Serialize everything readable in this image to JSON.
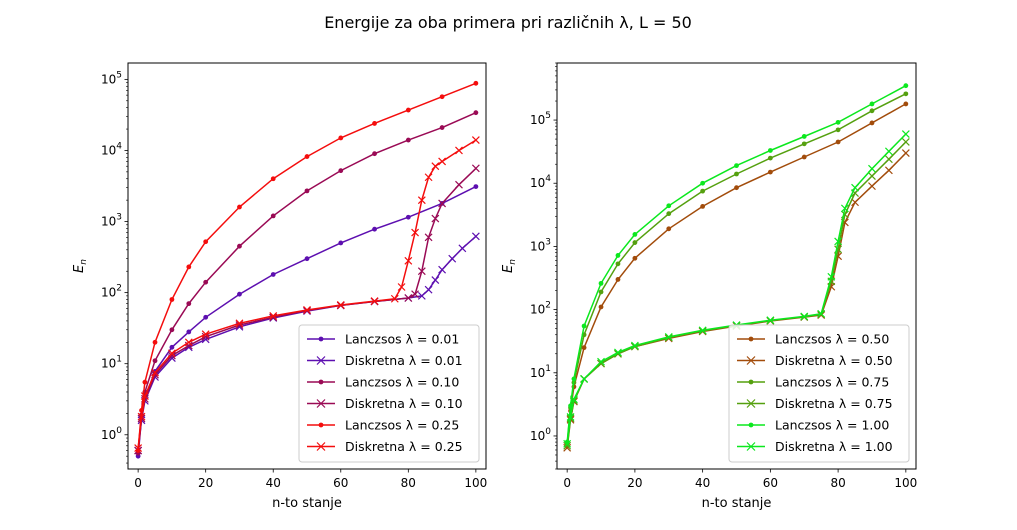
{
  "figure": {
    "title": "Energije za oba primera pri različnih λ, L = 50"
  },
  "chart_data": [
    {
      "type": "line",
      "yscale": "log",
      "xlabel": "n-to stanje",
      "ylabel": "E_n",
      "xlim": [
        -3,
        103
      ],
      "ylim": [
        0.33,
        170000
      ],
      "xticks": [
        0,
        20,
        40,
        60,
        80,
        100
      ],
      "xtick_labels": [
        "0",
        "20",
        "40",
        "60",
        "80",
        "100"
      ],
      "ytick_exponents": [
        0,
        1,
        2,
        3,
        4,
        5
      ],
      "legend_position": "lower-right",
      "series": [
        {
          "name": "Lanczsos λ = 0.01",
          "legend": "Lanczsos",
          "lambda": "λ = 0.01",
          "marker": "dot",
          "color": "#5d0fb0",
          "points": [
            [
              0,
              0.5
            ],
            [
              1,
              1.7
            ],
            [
              2,
              3.3
            ],
            [
              5,
              7.8
            ],
            [
              10,
              17
            ],
            [
              15,
              28
            ],
            [
              20,
              45
            ],
            [
              30,
              95
            ],
            [
              40,
              180
            ],
            [
              50,
              300
            ],
            [
              60,
              500
            ],
            [
              70,
              780
            ],
            [
              80,
              1150
            ],
            [
              90,
              1800
            ],
            [
              100,
              3100
            ]
          ]
        },
        {
          "name": "Diskretna λ = 0.01",
          "legend": "Diskretna",
          "lambda": "λ = 0.01",
          "marker": "x",
          "color": "#5d0fb0",
          "points": [
            [
              0,
              0.6
            ],
            [
              1,
              1.6
            ],
            [
              2,
              3
            ],
            [
              5,
              6.5
            ],
            [
              10,
              12
            ],
            [
              15,
              17
            ],
            [
              20,
              22
            ],
            [
              30,
              33
            ],
            [
              40,
              44
            ],
            [
              50,
              55
            ],
            [
              60,
              66
            ],
            [
              70,
              75
            ],
            [
              80,
              84
            ],
            [
              84,
              90
            ],
            [
              86,
              110
            ],
            [
              88,
              150
            ],
            [
              90,
              210
            ],
            [
              93,
              300
            ],
            [
              96,
              420
            ],
            [
              100,
              620
            ]
          ]
        },
        {
          "name": "Lanczsos λ = 0.10",
          "legend": "Lanczsos",
          "lambda": "λ = 0.10",
          "marker": "dot",
          "color": "#9a0a55",
          "points": [
            [
              0,
              0.55
            ],
            [
              1,
              1.9
            ],
            [
              2,
              4
            ],
            [
              5,
              11
            ],
            [
              10,
              30
            ],
            [
              15,
              70
            ],
            [
              20,
              140
            ],
            [
              30,
              450
            ],
            [
              40,
              1200
            ],
            [
              50,
              2700
            ],
            [
              60,
              5200
            ],
            [
              70,
              9000
            ],
            [
              80,
              14000
            ],
            [
              90,
              21000
            ],
            [
              100,
              34000
            ]
          ]
        },
        {
          "name": "Diskretna λ = 0.10",
          "legend": "Diskretna",
          "lambda": "λ = 0.10",
          "marker": "x",
          "color": "#9a0a55",
          "points": [
            [
              0,
              0.6
            ],
            [
              1,
              1.7
            ],
            [
              2,
              3.2
            ],
            [
              5,
              7
            ],
            [
              10,
              13
            ],
            [
              15,
              18
            ],
            [
              20,
              24
            ],
            [
              30,
              35
            ],
            [
              40,
              45
            ],
            [
              50,
              56
            ],
            [
              60,
              66
            ],
            [
              70,
              75
            ],
            [
              80,
              84
            ],
            [
              82,
              95
            ],
            [
              84,
              200
            ],
            [
              86,
              600
            ],
            [
              88,
              1100
            ],
            [
              90,
              1800
            ],
            [
              95,
              3300
            ],
            [
              100,
              5600
            ]
          ]
        },
        {
          "name": "Lanczsos λ = 0.25",
          "legend": "Lanczsos",
          "lambda": "λ = 0.25",
          "marker": "dot",
          "color": "#f40d0d",
          "points": [
            [
              0,
              0.6
            ],
            [
              1,
              2.2
            ],
            [
              2,
              5.5
            ],
            [
              5,
              20
            ],
            [
              10,
              80
            ],
            [
              15,
              230
            ],
            [
              20,
              520
            ],
            [
              30,
              1600
            ],
            [
              40,
              4000
            ],
            [
              50,
              8200
            ],
            [
              60,
              15000
            ],
            [
              70,
              24000
            ],
            [
              80,
              37000
            ],
            [
              90,
              57000
            ],
            [
              100,
              88000
            ]
          ]
        },
        {
          "name": "Diskretna λ = 0.25",
          "legend": "Diskretna",
          "lambda": "λ = 0.25",
          "marker": "x",
          "color": "#f40d0d",
          "points": [
            [
              0,
              0.65
            ],
            [
              1,
              1.8
            ],
            [
              2,
              3.5
            ],
            [
              5,
              7.5
            ],
            [
              10,
              14
            ],
            [
              15,
              20
            ],
            [
              20,
              26
            ],
            [
              30,
              37
            ],
            [
              40,
              47
            ],
            [
              50,
              57
            ],
            [
              60,
              67
            ],
            [
              70,
              76
            ],
            [
              76,
              82
            ],
            [
              78,
              120
            ],
            [
              80,
              280
            ],
            [
              82,
              700
            ],
            [
              84,
              2000
            ],
            [
              86,
              4200
            ],
            [
              88,
              6000
            ],
            [
              90,
              7000
            ],
            [
              95,
              10000
            ],
            [
              100,
              14000
            ]
          ]
        }
      ],
      "legend_rows": [
        {
          "label": "Lanczsos",
          "lambda": "λ = 0.01"
        },
        {
          "label": "Diskretna",
          "lambda": "λ = 0.01"
        },
        {
          "label": "Lanczsos",
          "lambda": "λ = 0.10"
        },
        {
          "label": "Diskretna",
          "lambda": "λ = 0.10"
        },
        {
          "label": "Lanczsos",
          "lambda": "λ = 0.25"
        },
        {
          "label": "Diskretna",
          "lambda": "λ = 0.25"
        }
      ]
    },
    {
      "type": "line",
      "yscale": "log",
      "xlabel": "n-to stanje",
      "ylabel": "E_n",
      "xlim": [
        -3,
        103
      ],
      "ylim": [
        0.3,
        800000
      ],
      "xticks": [
        0,
        20,
        40,
        60,
        80,
        100
      ],
      "xtick_labels": [
        "0",
        "20",
        "40",
        "60",
        "80",
        "100"
      ],
      "ytick_exponents": [
        0,
        1,
        2,
        3,
        4,
        5
      ],
      "legend_position": "lower-right",
      "series": [
        {
          "name": "Lanczsos λ = 0.50",
          "legend": "Lanczsos",
          "lambda": "λ = 0.50",
          "marker": "dot",
          "color": "#a24c0b",
          "points": [
            [
              0,
              0.7
            ],
            [
              1,
              2.5
            ],
            [
              2,
              6
            ],
            [
              5,
              25
            ],
            [
              10,
              110
            ],
            [
              15,
              300
            ],
            [
              20,
              650
            ],
            [
              30,
              1900
            ],
            [
              40,
              4300
            ],
            [
              50,
              8500
            ],
            [
              60,
              15000
            ],
            [
              70,
              26000
            ],
            [
              80,
              45000
            ],
            [
              90,
              90000
            ],
            [
              100,
              180000
            ]
          ]
        },
        {
          "name": "Diskretna λ = 0.50",
          "legend": "Diskretna",
          "lambda": "λ = 0.50",
          "marker": "x",
          "color": "#a24c0b",
          "points": [
            [
              0,
              0.65
            ],
            [
              1,
              1.8
            ],
            [
              2,
              3.5
            ],
            [
              5,
              8
            ],
            [
              10,
              14
            ],
            [
              15,
              20
            ],
            [
              20,
              26
            ],
            [
              30,
              35
            ],
            [
              40,
              45
            ],
            [
              50,
              55
            ],
            [
              60,
              66
            ],
            [
              70,
              76
            ],
            [
              75,
              82
            ],
            [
              78,
              230
            ],
            [
              80,
              700
            ],
            [
              82,
              2400
            ],
            [
              85,
              5000
            ],
            [
              90,
              9000
            ],
            [
              95,
              16000
            ],
            [
              100,
              30000
            ]
          ]
        },
        {
          "name": "Lanczsos λ = 0.75",
          "legend": "Lanczsos",
          "lambda": "λ = 0.75",
          "marker": "dot",
          "color": "#55a00f",
          "points": [
            [
              0,
              0.75
            ],
            [
              1,
              2.8
            ],
            [
              2,
              7
            ],
            [
              5,
              40
            ],
            [
              10,
              190
            ],
            [
              15,
              530
            ],
            [
              20,
              1150
            ],
            [
              30,
              3300
            ],
            [
              40,
              7500
            ],
            [
              50,
              14000
            ],
            [
              60,
              25000
            ],
            [
              70,
              42000
            ],
            [
              80,
              70000
            ],
            [
              90,
              140000
            ],
            [
              100,
              260000
            ]
          ]
        },
        {
          "name": "Diskretna λ = 0.75",
          "legend": "Diskretna",
          "lambda": "λ = 0.75",
          "marker": "x",
          "color": "#55a00f",
          "points": [
            [
              0,
              0.7
            ],
            [
              1,
              1.9
            ],
            [
              2,
              3.6
            ],
            [
              5,
              8
            ],
            [
              10,
              14
            ],
            [
              15,
              20
            ],
            [
              20,
              26
            ],
            [
              30,
              36
            ],
            [
              40,
              46
            ],
            [
              50,
              56
            ],
            [
              60,
              67
            ],
            [
              70,
              77
            ],
            [
              75,
              84
            ],
            [
              78,
              280
            ],
            [
              80,
              900
            ],
            [
              82,
              3200
            ],
            [
              85,
              7000
            ],
            [
              90,
              13000
            ],
            [
              95,
              24000
            ],
            [
              100,
              45000
            ]
          ]
        },
        {
          "name": "Lanczsos λ = 1.00",
          "legend": "Lanczsos",
          "lambda": "λ = 1.00",
          "marker": "dot",
          "color": "#0be81e",
          "points": [
            [
              0,
              0.8
            ],
            [
              1,
              3
            ],
            [
              2,
              8
            ],
            [
              5,
              55
            ],
            [
              10,
              260
            ],
            [
              15,
              720
            ],
            [
              20,
              1550
            ],
            [
              30,
              4400
            ],
            [
              40,
              10000
            ],
            [
              50,
              19000
            ],
            [
              60,
              33000
            ],
            [
              70,
              55000
            ],
            [
              80,
              92000
            ],
            [
              90,
              180000
            ],
            [
              100,
              350000
            ]
          ]
        },
        {
          "name": "Diskretna λ = 1.00",
          "legend": "Diskretna",
          "lambda": "λ = 1.00",
          "marker": "x",
          "color": "#0be81e",
          "points": [
            [
              0,
              0.75
            ],
            [
              1,
              2
            ],
            [
              2,
              3.8
            ],
            [
              5,
              8
            ],
            [
              10,
              15
            ],
            [
              15,
              21
            ],
            [
              20,
              27
            ],
            [
              30,
              37
            ],
            [
              40,
              47
            ],
            [
              50,
              57
            ],
            [
              60,
              68
            ],
            [
              70,
              78
            ],
            [
              75,
              86
            ],
            [
              78,
              330
            ],
            [
              80,
              1200
            ],
            [
              82,
              4000
            ],
            [
              85,
              8500
            ],
            [
              90,
              17000
            ],
            [
              95,
              32000
            ],
            [
              100,
              60000
            ]
          ]
        }
      ],
      "legend_rows": [
        {
          "label": "Lanczsos",
          "lambda": "λ = 0.50"
        },
        {
          "label": "Diskretna",
          "lambda": "λ = 0.50"
        },
        {
          "label": "Lanczsos",
          "lambda": "λ = 0.75"
        },
        {
          "label": "Diskretna",
          "lambda": "λ = 0.75"
        },
        {
          "label": "Lanczsos",
          "lambda": "λ = 1.00"
        },
        {
          "label": "Diskretna",
          "lambda": "λ = 1.00"
        }
      ]
    }
  ]
}
